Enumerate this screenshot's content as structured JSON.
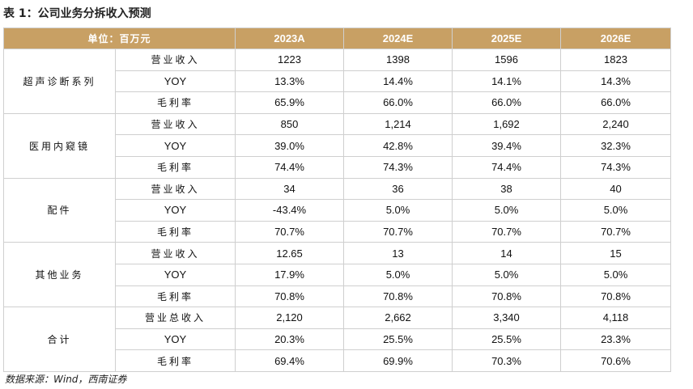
{
  "title": "表 1：公司业务分拆收入预测",
  "header": {
    "unit": "单位：百万元",
    "years": [
      "2023A",
      "2024E",
      "2025E",
      "2026E"
    ]
  },
  "groups": [
    {
      "name": "超声诊断系列",
      "rows": [
        {
          "metric": "营业收入",
          "values": [
            "1223",
            "1398",
            "1596",
            "1823"
          ]
        },
        {
          "metric": "YOY",
          "values": [
            "13.3%",
            "14.4%",
            "14.1%",
            "14.3%"
          ]
        },
        {
          "metric": "毛利率",
          "values": [
            "65.9%",
            "66.0%",
            "66.0%",
            "66.0%"
          ]
        }
      ]
    },
    {
      "name": "医用内窥镜",
      "rows": [
        {
          "metric": "营业收入",
          "values": [
            "850",
            "1,214",
            "1,692",
            "2,240"
          ]
        },
        {
          "metric": "YOY",
          "values": [
            "39.0%",
            "42.8%",
            "39.4%",
            "32.3%"
          ]
        },
        {
          "metric": "毛利率",
          "values": [
            "74.4%",
            "74.3%",
            "74.4%",
            "74.3%"
          ]
        }
      ]
    },
    {
      "name": "配件",
      "rows": [
        {
          "metric": "营业收入",
          "values": [
            "34",
            "36",
            "38",
            "40"
          ]
        },
        {
          "metric": "YOY",
          "values": [
            "-43.4%",
            "5.0%",
            "5.0%",
            "5.0%"
          ]
        },
        {
          "metric": "毛利率",
          "values": [
            "70.7%",
            "70.7%",
            "70.7%",
            "70.7%"
          ]
        }
      ]
    },
    {
      "name": "其他业务",
      "rows": [
        {
          "metric": "营业收入",
          "values": [
            "12.65",
            "13",
            "14",
            "15"
          ]
        },
        {
          "metric": "YOY",
          "values": [
            "17.9%",
            "5.0%",
            "5.0%",
            "5.0%"
          ]
        },
        {
          "metric": "毛利率",
          "values": [
            "70.8%",
            "70.8%",
            "70.8%",
            "70.8%"
          ]
        }
      ]
    },
    {
      "name": "合计",
      "rows": [
        {
          "metric": "营业总收入",
          "values": [
            "2,120",
            "2,662",
            "3,340",
            "4,118"
          ]
        },
        {
          "metric": "YOY",
          "values": [
            "20.3%",
            "25.5%",
            "25.5%",
            "23.3%"
          ]
        },
        {
          "metric": "毛利率",
          "values": [
            "69.4%",
            "69.9%",
            "70.3%",
            "70.6%"
          ]
        }
      ]
    }
  ],
  "source": "数据来源：Wind，西南证券",
  "colors": {
    "header_bg": "#c8a064",
    "header_text": "#ffffff",
    "border": "#cfcfcf"
  }
}
